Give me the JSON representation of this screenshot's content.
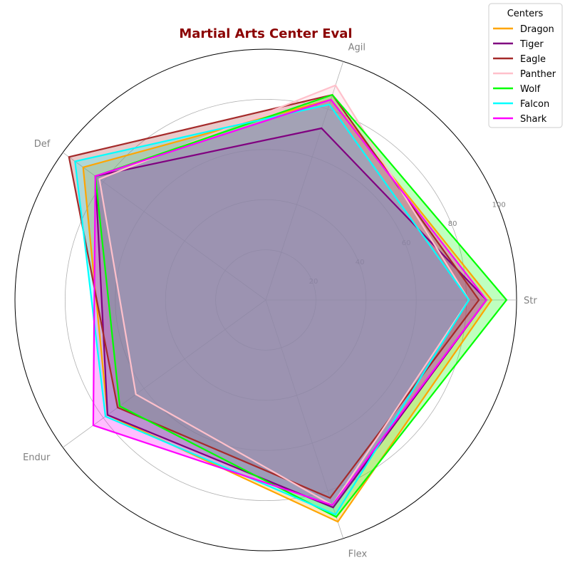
{
  "chart_data": {
    "type": "radar",
    "title": "Martial Arts Center Eval",
    "title_color": "#8b0000",
    "axes": [
      "Str",
      "Agil",
      "Def",
      "Endur",
      "Flex"
    ],
    "rmax": 100,
    "rticks": [
      20,
      40,
      60,
      80,
      100
    ],
    "grid": true,
    "legend": {
      "title": "Centers",
      "position": "top-right"
    },
    "series": [
      {
        "name": "Dragon",
        "color": "#ffa500",
        "values": [
          90,
          84,
          90,
          78,
          93
        ]
      },
      {
        "name": "Tiger",
        "color": "#800080",
        "values": [
          88,
          72,
          84,
          78,
          87
        ]
      },
      {
        "name": "Eagle",
        "color": "#a52a2a",
        "values": [
          85,
          86,
          97,
          73,
          83
        ]
      },
      {
        "name": "Panther",
        "color": "#ffc0cb",
        "values": [
          81,
          90,
          82,
          64,
          86
        ]
      },
      {
        "name": "Wolf",
        "color": "#00ff00",
        "values": [
          96,
          86,
          84,
          72,
          91
        ]
      },
      {
        "name": "Falcon",
        "color": "#00ffff",
        "values": [
          81,
          82,
          94,
          79,
          90
        ]
      },
      {
        "name": "Shark",
        "color": "#ff00ff",
        "values": [
          88,
          84,
          84,
          85,
          86
        ]
      }
    ]
  }
}
